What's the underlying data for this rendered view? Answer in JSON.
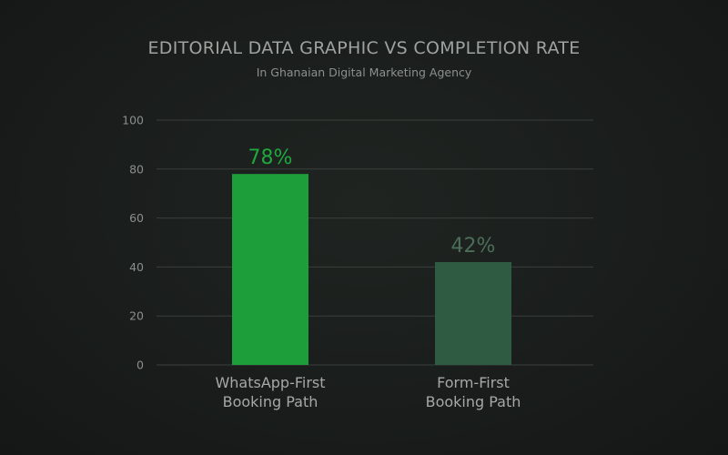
{
  "chart_data": {
    "type": "bar",
    "title": "EDITORIAL DATA GRAPHIC VS COMPLETION RATE",
    "subtitle": "In Ghanaian Digital Marketing Agency",
    "categories": [
      [
        "WhatsApp-First",
        "Booking Path"
      ],
      [
        "Form-First",
        "Booking Path"
      ]
    ],
    "values": [
      78,
      42
    ],
    "data_labels": [
      "78%",
      "42%"
    ],
    "bar_colors": [
      "#1e9e3a",
      "#2e5b42"
    ],
    "label_colors": [
      "#1fa83e",
      "#4a6e58"
    ],
    "yticks": [
      0,
      20,
      40,
      60,
      80,
      100
    ],
    "ylim": [
      0,
      100
    ],
    "grid": true,
    "legend": "none"
  },
  "colors": {
    "background": "#1a1e1c",
    "grid": "#3a3f3c",
    "axis_text": "#8a8f8c",
    "title": "#9ea3a0"
  }
}
